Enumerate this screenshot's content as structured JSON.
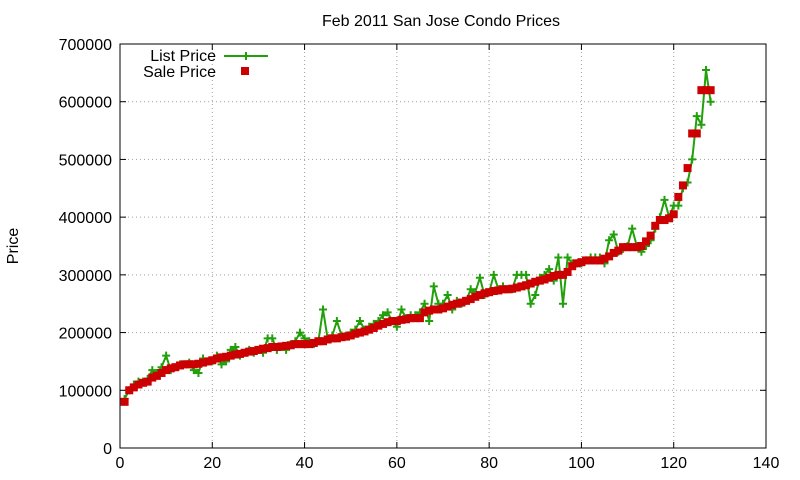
{
  "chart_data": {
    "type": "line",
    "title": "Feb 2011 San Jose Condo Prices",
    "xlabel": "",
    "ylabel": "Price",
    "xlim": [
      0,
      140
    ],
    "ylim": [
      0,
      700000
    ],
    "xticks": [
      0,
      20,
      40,
      60,
      80,
      100,
      120,
      140
    ],
    "yticks": [
      0,
      100000,
      200000,
      300000,
      400000,
      500000,
      600000,
      700000
    ],
    "grid": true,
    "legend_position": "top-left",
    "series": [
      {
        "name": "List Price",
        "style": "line-plus",
        "color": "#22a00c",
        "x": [
          1,
          2,
          3,
          4,
          5,
          6,
          7,
          8,
          9,
          10,
          11,
          12,
          13,
          14,
          15,
          16,
          17,
          18,
          19,
          20,
          21,
          22,
          23,
          24,
          25,
          26,
          27,
          28,
          29,
          30,
          31,
          32,
          33,
          34,
          35,
          36,
          37,
          38,
          39,
          40,
          41,
          42,
          43,
          44,
          45,
          46,
          47,
          48,
          49,
          50,
          51,
          52,
          53,
          54,
          55,
          56,
          57,
          58,
          59,
          60,
          61,
          62,
          63,
          64,
          65,
          66,
          67,
          68,
          69,
          70,
          71,
          72,
          73,
          74,
          75,
          76,
          77,
          78,
          79,
          80,
          81,
          82,
          83,
          84,
          85,
          86,
          87,
          88,
          89,
          90,
          91,
          92,
          93,
          94,
          95,
          96,
          97,
          98,
          99,
          100,
          101,
          102,
          103,
          104,
          105,
          106,
          107,
          108,
          109,
          110,
          111,
          112,
          113,
          114,
          115,
          116,
          117,
          118,
          119,
          120,
          121,
          122,
          123,
          124,
          125,
          126,
          127,
          128
        ],
        "values": [
          85000,
          100000,
          110000,
          115000,
          115000,
          120000,
          135000,
          130000,
          140000,
          160000,
          135000,
          140000,
          145000,
          145000,
          148000,
          135000,
          130000,
          155000,
          150000,
          150000,
          160000,
          145000,
          150000,
          170000,
          175000,
          160000,
          165000,
          170000,
          165000,
          170000,
          165000,
          190000,
          190000,
          170000,
          175000,
          170000,
          180000,
          185000,
          200000,
          190000,
          185000,
          180000,
          185000,
          240000,
          190000,
          195000,
          220000,
          195000,
          195000,
          200000,
          205000,
          220000,
          205000,
          210000,
          215000,
          220000,
          230000,
          235000,
          220000,
          210000,
          240000,
          225000,
          230000,
          230000,
          235000,
          250000,
          220000,
          280000,
          250000,
          250000,
          265000,
          240000,
          255000,
          250000,
          255000,
          275000,
          270000,
          295000,
          265000,
          270000,
          300000,
          275000,
          280000,
          275000,
          275000,
          300000,
          300000,
          300000,
          250000,
          265000,
          295000,
          300000,
          310000,
          290000,
          330000,
          250000,
          330000,
          320000,
          320000,
          320000,
          325000,
          330000,
          330000,
          330000,
          320000,
          360000,
          370000,
          340000,
          345000,
          350000,
          380000,
          350000,
          340000,
          350000,
          360000,
          380000,
          400000,
          430000,
          400000,
          420000,
          420000,
          450000,
          460000,
          500000,
          575000,
          560000,
          655000,
          600000
        ]
      },
      {
        "name": "Sale Price",
        "style": "square-points",
        "color": "#cc0000",
        "x": [
          1,
          2,
          3,
          4,
          5,
          6,
          7,
          8,
          9,
          10,
          11,
          12,
          13,
          14,
          15,
          16,
          17,
          18,
          19,
          20,
          21,
          22,
          23,
          24,
          25,
          26,
          27,
          28,
          29,
          30,
          31,
          32,
          33,
          34,
          35,
          36,
          37,
          38,
          39,
          40,
          41,
          42,
          43,
          44,
          45,
          46,
          47,
          48,
          49,
          50,
          51,
          52,
          53,
          54,
          55,
          56,
          57,
          58,
          59,
          60,
          61,
          62,
          63,
          64,
          65,
          66,
          67,
          68,
          69,
          70,
          71,
          72,
          73,
          74,
          75,
          76,
          77,
          78,
          79,
          80,
          81,
          82,
          83,
          84,
          85,
          86,
          87,
          88,
          89,
          90,
          91,
          92,
          93,
          94,
          95,
          96,
          97,
          98,
          99,
          100,
          101,
          102,
          103,
          104,
          105,
          106,
          107,
          108,
          109,
          110,
          111,
          112,
          113,
          114,
          115,
          116,
          117,
          118,
          119,
          120,
          121,
          122,
          123,
          124,
          125,
          126,
          127,
          128
        ],
        "values": [
          80000,
          100000,
          105000,
          110000,
          113000,
          115000,
          122000,
          125000,
          130000,
          135000,
          138000,
          140000,
          143000,
          145000,
          145000,
          145000,
          146000,
          148000,
          150000,
          152000,
          155000,
          157000,
          158000,
          160000,
          162000,
          163000,
          165000,
          167000,
          168000,
          170000,
          172000,
          173000,
          175000,
          175000,
          176000,
          177000,
          178000,
          180000,
          180000,
          180000,
          180000,
          182000,
          185000,
          185000,
          188000,
          190000,
          190000,
          192000,
          193000,
          195000,
          198000,
          200000,
          202000,
          205000,
          208000,
          212000,
          215000,
          218000,
          220000,
          220000,
          222000,
          223000,
          225000,
          225000,
          225000,
          235000,
          238000,
          240000,
          240000,
          242000,
          245000,
          248000,
          250000,
          252000,
          255000,
          258000,
          262000,
          265000,
          268000,
          270000,
          272000,
          273000,
          275000,
          275000,
          276000,
          278000,
          280000,
          282000,
          285000,
          288000,
          290000,
          292000,
          295000,
          298000,
          300000,
          300000,
          305000,
          315000,
          320000,
          322000,
          325000,
          325000,
          325000,
          325000,
          328000,
          332000,
          338000,
          342000,
          348000,
          348000,
          348000,
          348000,
          350000,
          358000,
          368000,
          385000,
          395000,
          395000,
          398000,
          405000,
          435000,
          455000,
          485000,
          545000,
          545000,
          620000,
          620000,
          620000
        ]
      }
    ]
  }
}
